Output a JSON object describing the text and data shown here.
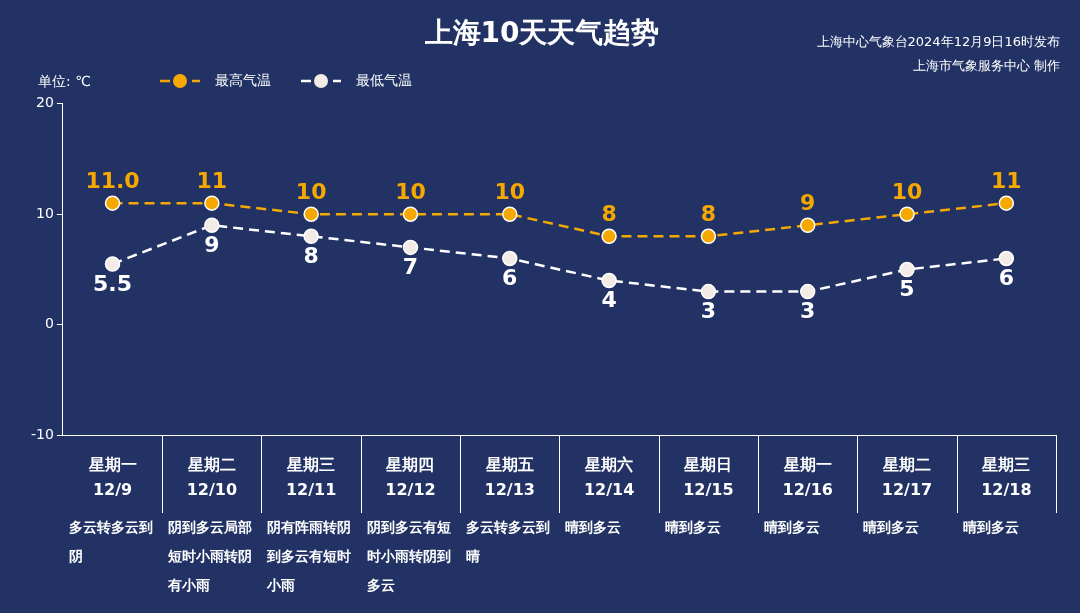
{
  "chart_data": {
    "type": "line",
    "title": "上海10天天气趋势",
    "ylabel": "单位: ℃",
    "categories": [
      "星期一\n12/9",
      "星期二\n12/10",
      "星期三\n12/11",
      "星期四\n12/12",
      "星期五\n12/13",
      "星期六\n12/14",
      "星期日\n12/15",
      "星期一\n12/16",
      "星期二\n12/17",
      "星期三\n12/18"
    ],
    "series": [
      {
        "name": "最高气温",
        "color": "#f5a800",
        "values": [
          11,
          11,
          10,
          10,
          10,
          8,
          8,
          9,
          10,
          11
        ],
        "value_labels": [
          "11.0",
          "11",
          "10",
          "10",
          "10",
          "8",
          "8",
          "9",
          "10",
          "11"
        ]
      },
      {
        "name": "最低气温",
        "color": "#ffffff",
        "values": [
          5.5,
          9,
          8,
          7,
          6,
          4,
          3,
          3,
          5,
          6
        ],
        "value_labels": [
          "5.5",
          "9",
          "8",
          "7",
          "6",
          "4",
          "3",
          "3",
          "5",
          "6"
        ]
      }
    ],
    "ylim": [
      -10,
      20
    ],
    "yticks": [
      -10,
      0,
      10,
      20
    ],
    "grid": false,
    "legend": "top left",
    "marker": "circle",
    "line_style": "dashed",
    "annotations": [
      "上海中心气象台2024年12月9日16时发布",
      "上海市气象服务中心 制作",
      "多云转多云到阴",
      "阴到多云局部短时小雨转阴有小雨",
      "阴有阵雨转阴到多云有短时小雨",
      "阴到多云有短时小雨转阴到多云",
      "多云转多云到晴",
      "晴到多云",
      "晴到多云",
      "晴到多云",
      "晴到多云",
      "晴到多云"
    ]
  }
}
